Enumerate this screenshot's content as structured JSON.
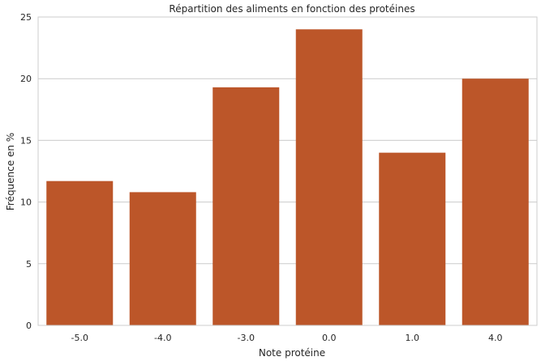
{
  "chart_data": {
    "type": "bar",
    "title": "Répartition des aliments en fonction des protéines",
    "xlabel": "Note protéine",
    "ylabel": "Fréquence en %",
    "categories": [
      "-5.0",
      "-4.0",
      "-3.0",
      "0.0",
      "1.0",
      "4.0"
    ],
    "values": [
      11.7,
      10.8,
      19.3,
      24.0,
      14.0,
      20.0
    ],
    "ylim": [
      0,
      25
    ],
    "yticks": [
      "0",
      "5",
      "10",
      "15",
      "20",
      "25"
    ],
    "grid": "horizontal",
    "bar_color": "#bc5629",
    "grid_color": "#cccccc"
  }
}
